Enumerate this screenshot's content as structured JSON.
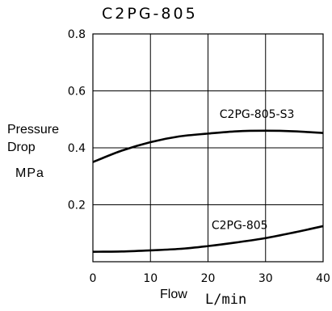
{
  "chart_data": {
    "type": "line",
    "title": "C2PG-805",
    "ylabel": {
      "line1": "Pressure",
      "line2": "Drop",
      "unit": "MPa"
    },
    "xlabel": {
      "name": "Flow",
      "unit": "L/min"
    },
    "xlim": [
      0,
      40
    ],
    "ylim": [
      0,
      0.8
    ],
    "xticks": [
      0,
      10,
      20,
      30,
      40
    ],
    "xtick_labels": [
      "0",
      "10",
      "20",
      "30",
      "40"
    ],
    "yticks": [
      0.2,
      0.4,
      0.6,
      0.8
    ],
    "ytick_labels": [
      "0.2",
      "0.4",
      "0.6",
      "0.8"
    ],
    "grid": true,
    "series": [
      {
        "name": "C2PG-805-S3",
        "x": [
          0,
          5,
          10,
          15,
          20,
          25,
          30,
          35,
          40
        ],
        "y": [
          0.35,
          0.39,
          0.42,
          0.44,
          0.45,
          0.458,
          0.46,
          0.458,
          0.452
        ]
      },
      {
        "name": "C2PG-805",
        "x": [
          0,
          5,
          10,
          15,
          20,
          25,
          30,
          35,
          40
        ],
        "y": [
          0.035,
          0.036,
          0.04,
          0.045,
          0.055,
          0.068,
          0.083,
          0.103,
          0.125
        ]
      }
    ]
  }
}
